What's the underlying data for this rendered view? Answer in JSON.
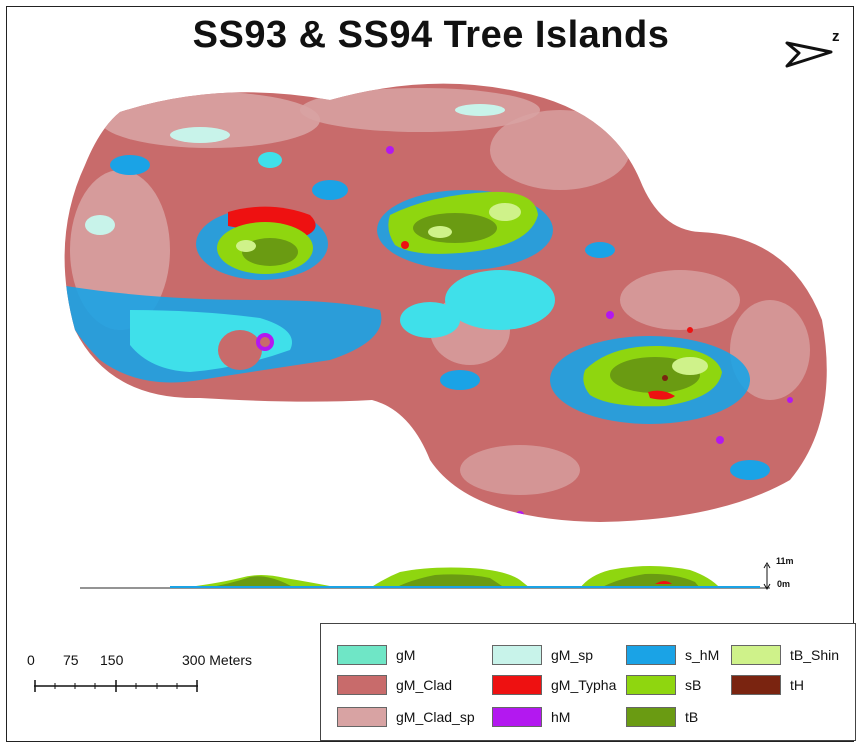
{
  "map": {
    "title": "SS93 & SS94 Tree Islands",
    "north_label": "z",
    "elevation": {
      "max_label": "11m",
      "min_label": "0m"
    },
    "scale": {
      "ticks": [
        "0",
        "75",
        "150",
        "300 Meters"
      ]
    },
    "legend": {
      "items": [
        {
          "label": "gM",
          "color": "#6fe6c6"
        },
        {
          "label": "gM_Clad",
          "color": "#c86b6b"
        },
        {
          "label": "gM_Clad_sp",
          "color": "#d8a3a3"
        },
        {
          "label": "gM_sp",
          "color": "#c8f3ea"
        },
        {
          "label": "gM_Typha",
          "color": "#ee1111"
        },
        {
          "label": "hM",
          "color": "#b318f0"
        },
        {
          "label": "s_hM",
          "color": "#1aa3e6"
        },
        {
          "label": "sB",
          "color": "#8fd60f"
        },
        {
          "label": "tB",
          "color": "#6a9b12"
        },
        {
          "label": "tB_Shin",
          "color": "#cff28a"
        },
        {
          "label": "tH",
          "color": "#7a2410"
        }
      ]
    }
  }
}
